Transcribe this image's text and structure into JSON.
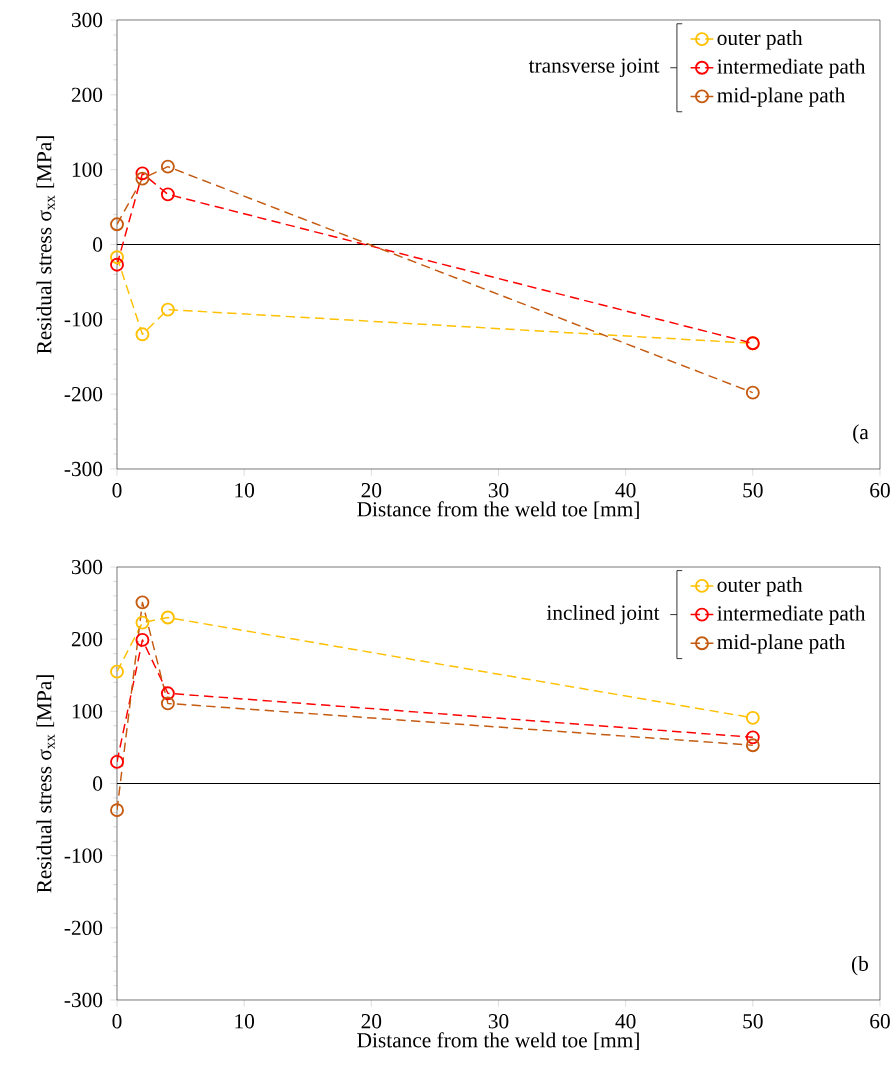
{
  "chart_data": [
    {
      "type": "line",
      "xlabel": "Distance from the weld toe [mm]",
      "ylabel": "Residual stress σ$_{xx}$ [MPa]",
      "legend_title": "transverse joint",
      "annotations": [
        "(a"
      ],
      "x": [
        0,
        2,
        4,
        50
      ],
      "series": [
        {
          "name": "outer path",
          "color": "#ffc000",
          "values": [
            -17,
            -120,
            -87,
            -132
          ]
        },
        {
          "name": "intermediate path",
          "color": "#ff0000",
          "values": [
            -27,
            95,
            67,
            -132
          ]
        },
        {
          "name": "mid-plane path",
          "color": "#c55a11",
          "values": [
            27,
            88,
            104,
            -198
          ]
        }
      ],
      "xlim": [
        0,
        60
      ],
      "ylim": [
        -300,
        300
      ],
      "xticks": [
        0,
        10,
        20,
        30,
        40,
        50,
        60
      ],
      "yticks": [
        -300,
        -200,
        -100,
        0,
        100,
        200,
        300
      ],
      "ref_lines": [
        {
          "axis": "y",
          "value": 0,
          "color": "#000000"
        }
      ],
      "legend": "top right",
      "marker": "circle",
      "line_style": "dashed"
    },
    {
      "type": "line",
      "xlabel": "Distance from the weld toe [mm]",
      "ylabel": "Residual stress σ$_{xx}$ [MPa]",
      "legend_title": "inclined joint",
      "annotations": [
        "(b"
      ],
      "x": [
        0,
        2,
        4,
        50
      ],
      "series": [
        {
          "name": "outer path",
          "color": "#ffc000",
          "values": [
            155,
            223,
            230,
            91
          ]
        },
        {
          "name": "intermediate path",
          "color": "#ff0000",
          "values": [
            30,
            199,
            125,
            64
          ]
        },
        {
          "name": "mid-plane path",
          "color": "#c55a11",
          "values": [
            -37,
            251,
            111,
            53
          ]
        }
      ],
      "xlim": [
        0,
        60
      ],
      "ylim": [
        -300,
        300
      ],
      "xticks": [
        0,
        10,
        20,
        30,
        40,
        50,
        60
      ],
      "yticks": [
        -300,
        -200,
        -100,
        0,
        100,
        200,
        300
      ],
      "ref_lines": [
        {
          "axis": "y",
          "value": 0,
          "color": "#000000"
        }
      ],
      "legend": "top right",
      "marker": "circle",
      "line_style": "dashed"
    }
  ]
}
